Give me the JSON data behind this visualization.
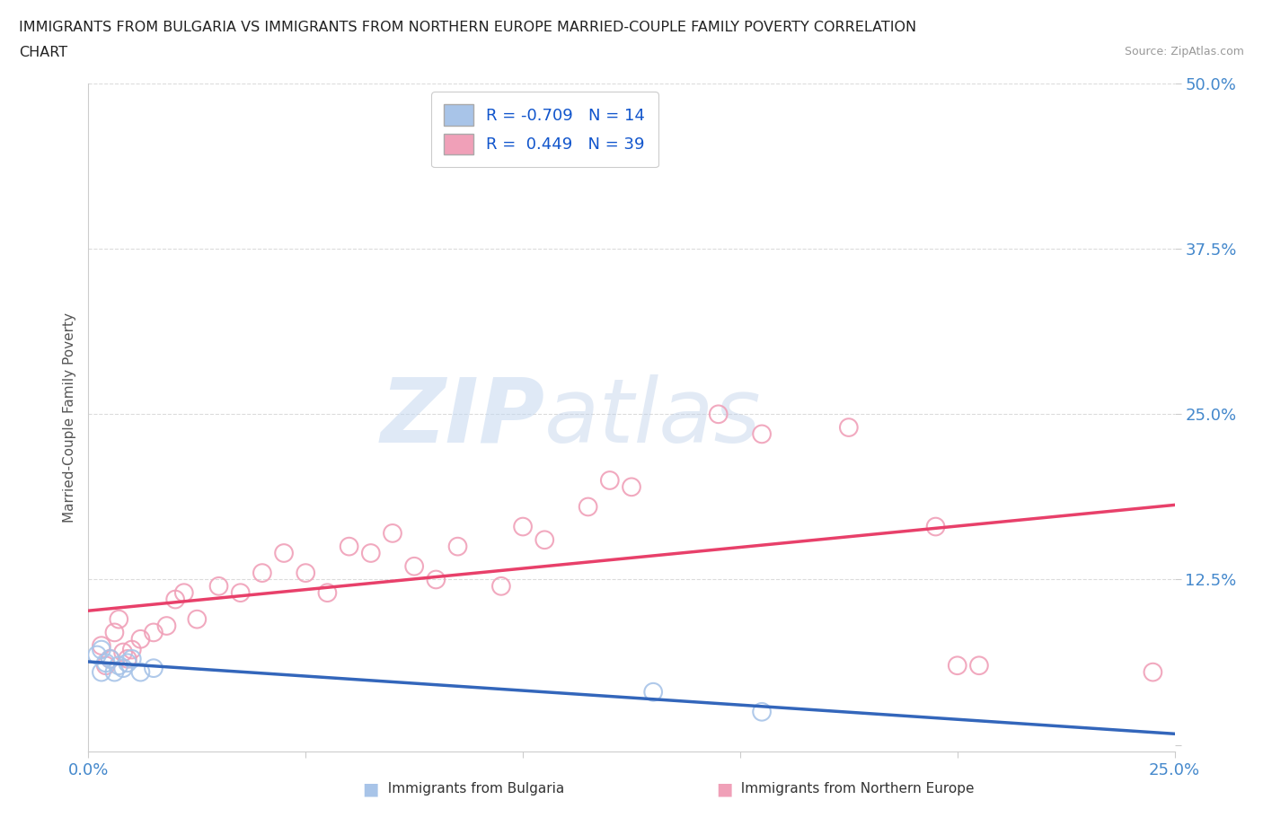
{
  "title_line1": "IMMIGRANTS FROM BULGARIA VS IMMIGRANTS FROM NORTHERN EUROPE MARRIED-COUPLE FAMILY POVERTY CORRELATION",
  "title_line2": "CHART",
  "source_text": "Source: ZipAtlas.com",
  "ylabel": "Married-Couple Family Poverty",
  "xlim": [
    0.0,
    0.25
  ],
  "ylim": [
    -0.005,
    0.5
  ],
  "yticks": [
    0.0,
    0.125,
    0.25,
    0.375,
    0.5
  ],
  "ytick_labels": [
    "",
    "12.5%",
    "25.0%",
    "37.5%",
    "50.0%"
  ],
  "xticks": [
    0.0,
    0.05,
    0.1,
    0.15,
    0.2,
    0.25
  ],
  "xtick_labels": [
    "0.0%",
    "",
    "",
    "",
    "",
    "25.0%"
  ],
  "watermark1": "ZIP",
  "watermark2": "atlas",
  "bulgaria_color": "#a8c4e8",
  "northern_europe_color": "#f0a0b8",
  "bulgaria_line_color": "#3366bb",
  "northern_europe_line_color": "#e8406a",
  "R_bulgaria": -0.709,
  "N_bulgaria": 14,
  "R_northern_europe": 0.449,
  "N_northern_europe": 39,
  "bulgaria_scatter_x": [
    0.002,
    0.003,
    0.003,
    0.004,
    0.005,
    0.006,
    0.007,
    0.008,
    0.009,
    0.01,
    0.012,
    0.015,
    0.13,
    0.155
  ],
  "bulgaria_scatter_y": [
    0.068,
    0.055,
    0.072,
    0.062,
    0.065,
    0.055,
    0.06,
    0.058,
    0.062,
    0.065,
    0.055,
    0.058,
    0.04,
    0.025
  ],
  "northern_europe_scatter_x": [
    0.003,
    0.004,
    0.005,
    0.006,
    0.007,
    0.008,
    0.009,
    0.01,
    0.012,
    0.015,
    0.018,
    0.02,
    0.022,
    0.025,
    0.03,
    0.035,
    0.04,
    0.045,
    0.05,
    0.055,
    0.06,
    0.065,
    0.07,
    0.075,
    0.08,
    0.085,
    0.095,
    0.1,
    0.105,
    0.115,
    0.12,
    0.125,
    0.145,
    0.155,
    0.175,
    0.195,
    0.2,
    0.205,
    0.245
  ],
  "northern_europe_scatter_y": [
    0.075,
    0.06,
    0.065,
    0.085,
    0.095,
    0.07,
    0.065,
    0.072,
    0.08,
    0.085,
    0.09,
    0.11,
    0.115,
    0.095,
    0.12,
    0.115,
    0.13,
    0.145,
    0.13,
    0.115,
    0.15,
    0.145,
    0.16,
    0.135,
    0.125,
    0.15,
    0.12,
    0.165,
    0.155,
    0.18,
    0.2,
    0.195,
    0.25,
    0.235,
    0.24,
    0.165,
    0.06,
    0.06,
    0.055
  ],
  "legend_label_bulgaria": "Immigrants from Bulgaria",
  "legend_label_northern_europe": "Immigrants from Northern Europe",
  "background_color": "#ffffff",
  "grid_color": "#cccccc",
  "title_color": "#222222",
  "axis_label_color": "#555555",
  "tick_label_color": "#4488cc",
  "source_color": "#999999"
}
